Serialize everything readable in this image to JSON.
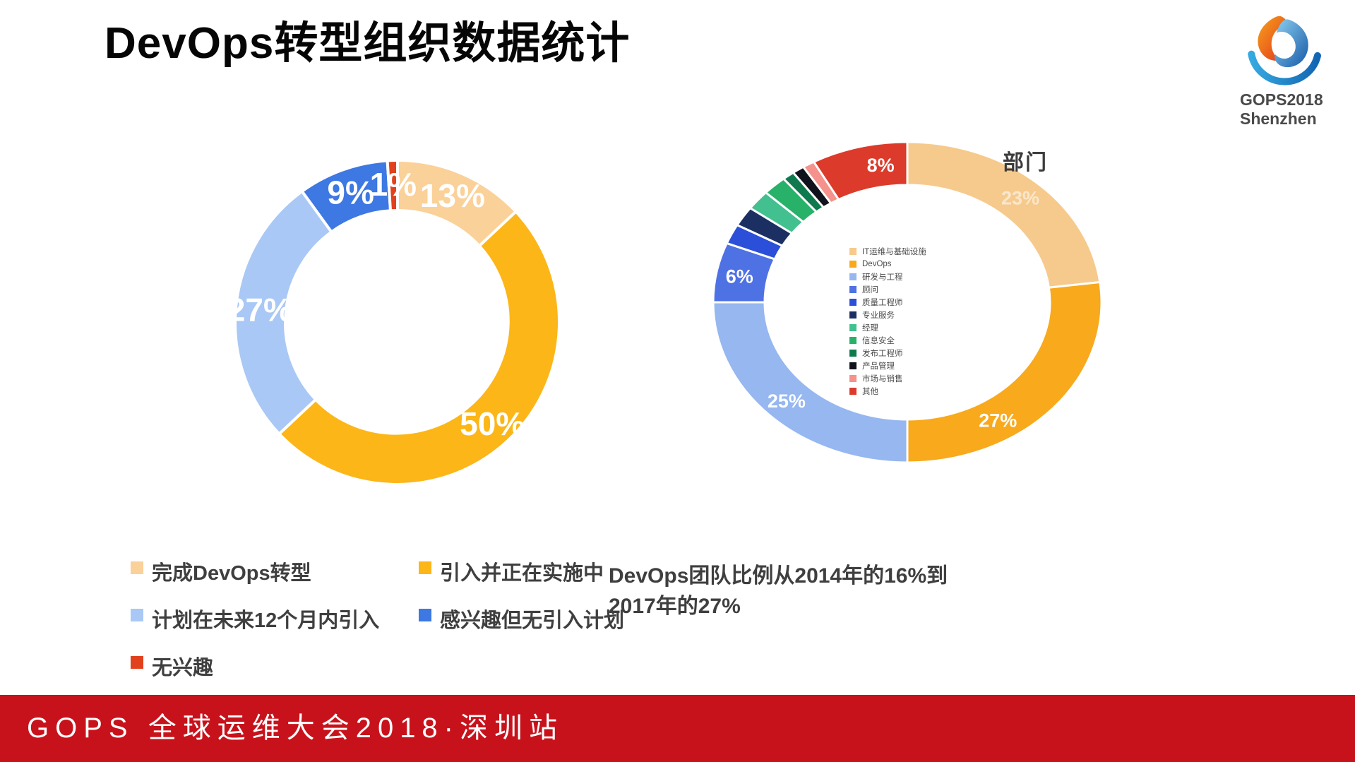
{
  "slide": {
    "title": "DevOps转型组织数据统计"
  },
  "logo": {
    "brand": "GOPS2018",
    "city": "Shenzhen"
  },
  "caption": {
    "line1": "DevOps团队比例从2014年的16%到",
    "line2": "2017年的27%"
  },
  "footer": {
    "text": "GOPS 全球运维大会2018·深圳站"
  },
  "chart_data": [
    {
      "type": "pie",
      "donut": true,
      "labels": [
        "完成DevOps转型",
        "引入并正在实施中",
        "计划在未来12个月内引入",
        "感兴趣但无引入计划",
        "无兴趣"
      ],
      "values": [
        13,
        50,
        27,
        9,
        1
      ],
      "value_label_format": "percent",
      "colors": [
        "#FAD199",
        "#FCB618",
        "#A9C8F5",
        "#3D78E3",
        "#E2411E"
      ],
      "legend_position": "bottom"
    },
    {
      "type": "pie",
      "donut": true,
      "title": "部门",
      "labels": [
        "IT运维与基础设施",
        "DevOps",
        "研发与工程",
        "顾问",
        "质量工程师",
        "专业服务",
        "经理",
        "信息安全",
        "发布工程师",
        "产品管理",
        "市场与销售",
        "其他"
      ],
      "values": [
        23,
        27,
        25,
        6,
        2,
        2,
        2,
        2,
        1,
        1,
        1,
        8
      ],
      "value_label_format": "percent",
      "colors": [
        "#F6CA8C",
        "#F8A91C",
        "#96B7F0",
        "#4E71E4",
        "#2B4FD8",
        "#1C2F63",
        "#43C08F",
        "#28B169",
        "#0E7A4E",
        "#10131C",
        "#F4928B",
        "#DC3B2B"
      ],
      "legend_position": "center"
    }
  ]
}
